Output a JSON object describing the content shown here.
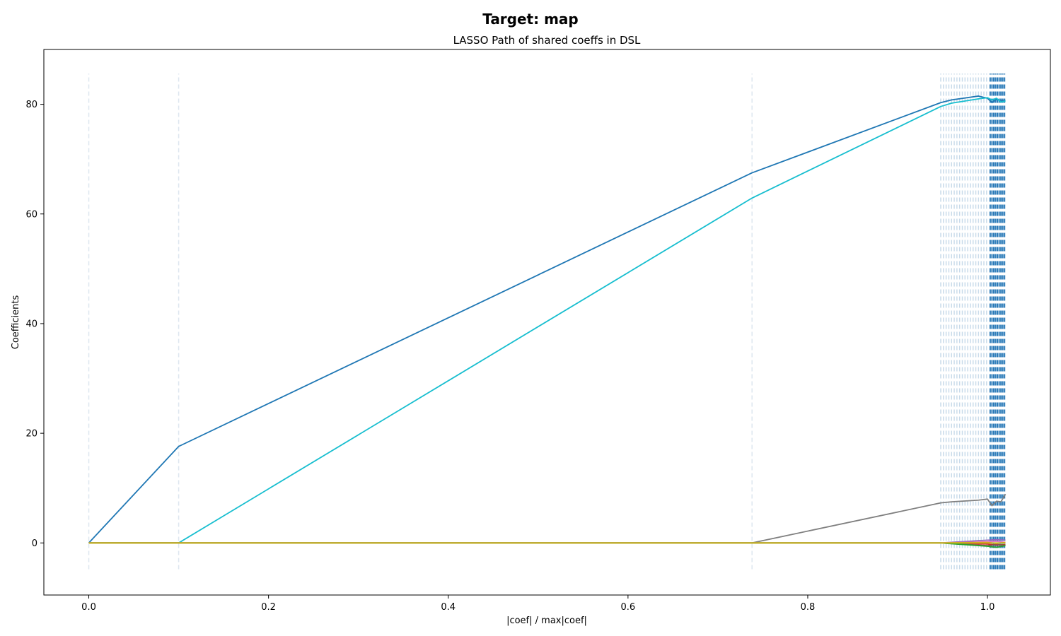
{
  "suptitle": "Target: map",
  "chart_data": {
    "type": "line",
    "title": "LASSO Path of shared coeffs in DSL",
    "xlabel": "|coef| / max|coef|",
    "ylabel": "Coefficients",
    "xlim": [
      -0.05,
      1.07
    ],
    "ylim": [
      -9.5,
      90
    ],
    "xticks": [
      0.0,
      0.2,
      0.4,
      0.6,
      0.8,
      1.0
    ],
    "xtick_labels": [
      "0.0",
      "0.2",
      "0.4",
      "0.6",
      "0.8",
      "1.0"
    ],
    "yticks": [
      0,
      20,
      40,
      60,
      80
    ],
    "ytick_labels": [
      "0",
      "20",
      "40",
      "60",
      "80"
    ],
    "grid": false,
    "legend": "none",
    "vlines": {
      "style": "dashed",
      "ymin": -4.8,
      "ymax": 85.6,
      "x_sparse": [
        0.0,
        0.1,
        0.738
      ],
      "x_dense_faint": [
        0.948,
        0.951,
        0.954,
        0.957,
        0.96,
        0.963,
        0.966,
        0.969,
        0.972,
        0.975,
        0.978,
        0.981,
        0.984,
        0.987,
        0.99,
        0.993,
        0.996,
        0.999
      ],
      "x_dense_strong": [
        1.003,
        1.005,
        1.007,
        1.009,
        1.011,
        1.013,
        1.015,
        1.017,
        1.019
      ]
    },
    "series": [
      {
        "color": "#1f77b4",
        "x": [
          0.0,
          0.1,
          0.738,
          0.948,
          0.96,
          0.99,
          1.0,
          1.005,
          1.01,
          1.015,
          1.02
        ],
        "y": [
          0,
          17.6,
          67.5,
          80.3,
          80.8,
          81.5,
          81.1,
          80.3,
          80.9,
          80.6,
          80.7
        ]
      },
      {
        "color": "#17becf",
        "x": [
          0.0,
          0.1,
          0.738,
          0.948,
          0.96,
          0.99,
          1.0,
          1.005,
          1.01,
          1.015,
          1.02
        ],
        "y": [
          0,
          0,
          62.9,
          79.6,
          80.2,
          81.0,
          81.2,
          80.8,
          81.1,
          80.4,
          80.6
        ]
      },
      {
        "color": "#7f7f7f",
        "x": [
          0.0,
          0.738,
          0.948,
          0.96,
          0.99,
          1.0,
          1.005,
          1.01,
          1.015,
          1.02
        ],
        "y": [
          0,
          0,
          7.3,
          7.5,
          7.8,
          8.0,
          6.8,
          7.6,
          7.5,
          8.9
        ]
      },
      {
        "color": "#9467bd",
        "x": [
          0.0,
          0.948,
          1.0,
          1.01,
          1.02
        ],
        "y": [
          0,
          0,
          0.5,
          0.6,
          0.5
        ]
      },
      {
        "color": "#d62728",
        "x": [
          0.0,
          0.948,
          1.0,
          1.01,
          1.02
        ],
        "y": [
          0,
          0,
          -0.2,
          -0.4,
          -0.3
        ]
      },
      {
        "color": "#8c564b",
        "x": [
          0.0,
          0.948,
          1.0,
          1.01,
          1.02
        ],
        "y": [
          0,
          0,
          -0.5,
          -0.3,
          -0.4
        ]
      },
      {
        "color": "#2ca02c",
        "x": [
          0.0,
          0.948,
          1.0,
          1.01,
          1.02
        ],
        "y": [
          0,
          0,
          -0.6,
          -0.8,
          -0.5
        ]
      },
      {
        "color": "#e377c2",
        "x": [
          0.0,
          0.948,
          1.0,
          1.01,
          1.02
        ],
        "y": [
          0,
          0,
          0.2,
          0.3,
          0.1
        ]
      },
      {
        "color": "#ff7f0e",
        "x": [
          0.0,
          0.948,
          1.0,
          1.01,
          1.02
        ],
        "y": [
          0,
          0,
          0.1,
          -0.1,
          0.1
        ]
      },
      {
        "color": "#bcbd22",
        "x": [
          0.0,
          0.948,
          1.0,
          1.01,
          1.02
        ],
        "y": [
          0,
          0,
          0.0,
          0.0,
          0.0
        ]
      }
    ]
  }
}
